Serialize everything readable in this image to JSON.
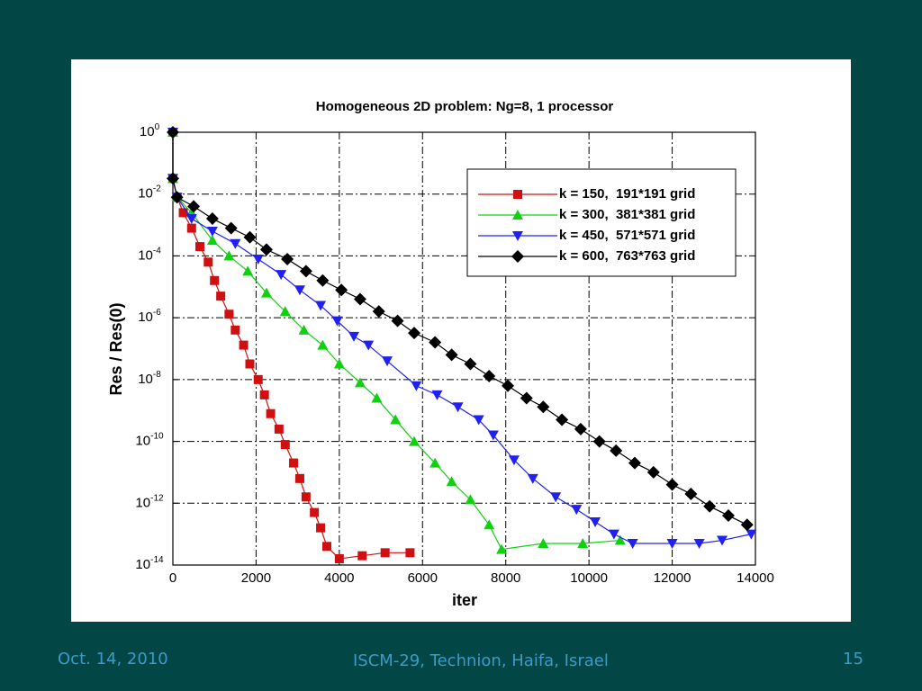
{
  "chart_data": {
    "type": "line",
    "title": "Homogeneous 2D problem:  Ng=8,  1 processor",
    "xlabel": "iter",
    "ylabel": "Res / Res(0)",
    "xlim": [
      0,
      14000
    ],
    "xticks": [
      0,
      2000,
      4000,
      6000,
      8000,
      10000,
      12000,
      14000
    ],
    "ylim": [
      1e-14,
      1
    ],
    "yscale": "log",
    "yticks": [
      {
        "value": 1,
        "label": "10",
        "exponent": "0"
      },
      {
        "value": 0.01,
        "label": "10",
        "exponent": "-2"
      },
      {
        "value": 0.0001,
        "label": "10",
        "exponent": "-4"
      },
      {
        "value": 1e-06,
        "label": "10",
        "exponent": "-6"
      },
      {
        "value": 1e-08,
        "label": "10",
        "exponent": "-8"
      },
      {
        "value": 1e-10,
        "label": "10",
        "exponent": "-10"
      },
      {
        "value": 1e-12,
        "label": "10",
        "exponent": "-12"
      },
      {
        "value": 1e-14,
        "label": "10",
        "exponent": "-14"
      }
    ],
    "grid": true,
    "legend": "upper right",
    "series": [
      {
        "name": "k = 150,  191*191 grid",
        "color": "#d01010",
        "marker": "square",
        "x": [
          0,
          0,
          100,
          250,
          450,
          650,
          850,
          1000,
          1150,
          1350,
          1500,
          1700,
          1850,
          2050,
          2200,
          2350,
          2550,
          2700,
          2900,
          3050,
          3200,
          3400,
          3550,
          3700,
          4000,
          4550,
          5100,
          5700
        ],
        "values": [
          1,
          0.032,
          0.0079,
          0.0025,
          0.00079,
          0.0002,
          6.3e-05,
          1.6e-05,
          5e-06,
          1.3e-06,
          4e-07,
          1.3e-07,
          3.2e-08,
          1e-08,
          3.2e-09,
          7.9e-10,
          2.5e-10,
          7.9e-11,
          2e-11,
          6.3e-12,
          1.6e-12,
          5e-13,
          1.6e-13,
          4e-14,
          1.6e-14,
          2e-14,
          2.5e-14,
          2.5e-14
        ]
      },
      {
        "name": "k = 300,  381*381 grid",
        "color": "#10d010",
        "marker": "triangle-up",
        "x": [
          0,
          0,
          100,
          450,
          950,
          1350,
          1800,
          2250,
          2700,
          3150,
          3600,
          4000,
          4500,
          4900,
          5350,
          5800,
          6300,
          6700,
          7150,
          7600,
          7900,
          8900,
          9850,
          10750
        ],
        "values": [
          1,
          0.032,
          0.0079,
          0.0025,
          0.00032,
          0.0001,
          3.2e-05,
          6.3e-06,
          1.6e-06,
          4e-07,
          1.3e-07,
          3.2e-08,
          7.9e-09,
          2.5e-09,
          5e-10,
          1e-10,
          2e-11,
          5e-12,
          1.3e-12,
          2e-13,
          3.2e-14,
          5e-14,
          5e-14,
          6.3e-14
        ]
      },
      {
        "name": "k = 450,  571*571 grid",
        "color": "#2020f0",
        "marker": "triangle-down",
        "x": [
          0,
          0,
          100,
          450,
          950,
          1500,
          2050,
          2600,
          3050,
          3550,
          3950,
          4350,
          4700,
          5150,
          5850,
          6350,
          6850,
          7350,
          7700,
          8200,
          8650,
          9200,
          9700,
          10150,
          10600,
          11050,
          12000,
          12650,
          13200,
          13900
        ],
        "values": [
          1,
          0.032,
          0.0079,
          0.0016,
          0.00063,
          0.00025,
          7.9e-05,
          2.5e-05,
          7.9e-06,
          2.5e-06,
          7.9e-07,
          2.5e-07,
          1.3e-07,
          4e-08,
          6.3e-09,
          3.2e-09,
          1.3e-09,
          5e-10,
          1.6e-10,
          2.5e-11,
          6.3e-12,
          1.6e-12,
          6.3e-13,
          2.5e-13,
          1e-13,
          5e-14,
          5e-14,
          5e-14,
          6.3e-14,
          1e-13
        ]
      },
      {
        "name": "k = 600,  763*763 grid",
        "color": "#000000",
        "marker": "diamond",
        "x": [
          0,
          0,
          100,
          500,
          950,
          1400,
          1850,
          2250,
          2750,
          3200,
          3600,
          4050,
          4500,
          4950,
          5400,
          5800,
          6300,
          6700,
          7150,
          7600,
          8050,
          8500,
          8900,
          9350,
          9800,
          10250,
          10650,
          11100,
          11550,
          12000,
          12450,
          12900,
          13350,
          13800
        ],
        "values": [
          1,
          0.032,
          0.0079,
          0.004,
          0.0016,
          0.00079,
          0.0004,
          0.00016,
          7.9e-05,
          3.2e-05,
          1.6e-05,
          7.9e-06,
          4e-06,
          1.6e-06,
          7.9e-07,
          3.2e-07,
          1.6e-07,
          6.3e-08,
          3.2e-08,
          1.3e-08,
          6.3e-09,
          2.5e-09,
          1.3e-09,
          5e-10,
          2.5e-10,
          1e-10,
          5e-11,
          2e-11,
          1e-11,
          4e-12,
          2e-12,
          7.9e-13,
          4e-13,
          2e-13
        ]
      }
    ]
  },
  "footer": {
    "date": "Oct. 14, 2010",
    "venue": "ISCM-29, Technion, Haifa, Israel",
    "page": "15"
  }
}
